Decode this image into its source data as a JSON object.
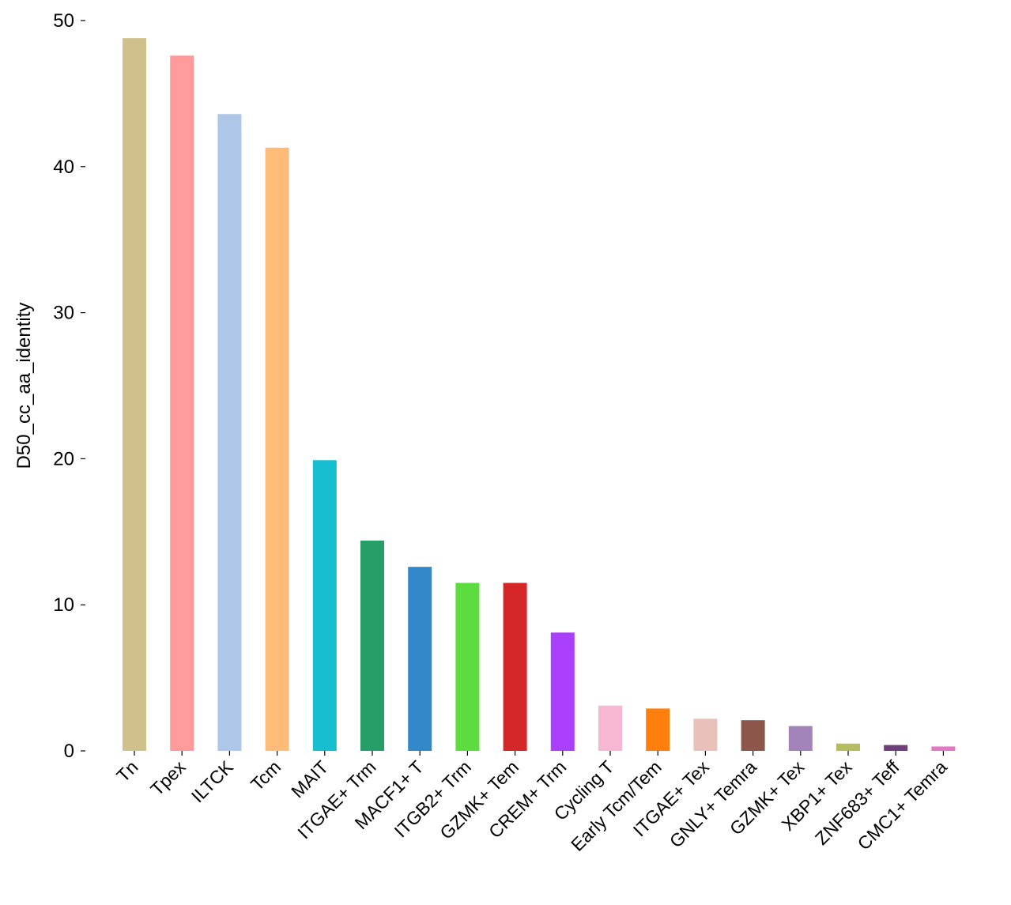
{
  "chart_data": {
    "type": "bar",
    "title": "",
    "xlabel": "",
    "ylabel": "D50_cc_aa_identity",
    "ylim": [
      0,
      50
    ],
    "yticks": [
      0,
      10,
      20,
      30,
      40,
      50
    ],
    "grid": false,
    "legend": "none",
    "categories": [
      "Tn",
      "Tpex",
      "ILTCK",
      "Tcm",
      "MAIT",
      "ITGAE+ Trm",
      "MACF1+ T",
      "ITGB2+ Trm",
      "GZMK+ Tem",
      "CREM+ Trm",
      "Cycling T",
      "Early Tcm/Tem",
      "ITGAE+ Tex",
      "GNLY+ Temra",
      "GZMK+ Tex",
      "XBP1+ Tex",
      "ZNF683+ Teff",
      "CMC1+ Temra"
    ],
    "values": [
      48.8,
      47.6,
      43.6,
      41.3,
      19.9,
      14.4,
      12.6,
      11.5,
      11.5,
      8.1,
      3.1,
      2.9,
      2.2,
      2.1,
      1.7,
      0.5,
      0.4,
      0.3
    ],
    "colors": [
      "#CFC08C",
      "#FF9B9A",
      "#AEC6E8",
      "#FFBB78",
      "#17BECF",
      "#279E68",
      "#3288C9",
      "#5CDC3F",
      "#D62728",
      "#AA40FC",
      "#F7B6D2",
      "#FF7F0E",
      "#E8C1BA",
      "#8C564B",
      "#A284BA",
      "#B5BD61",
      "#6E3F78",
      "#E377C2"
    ]
  }
}
